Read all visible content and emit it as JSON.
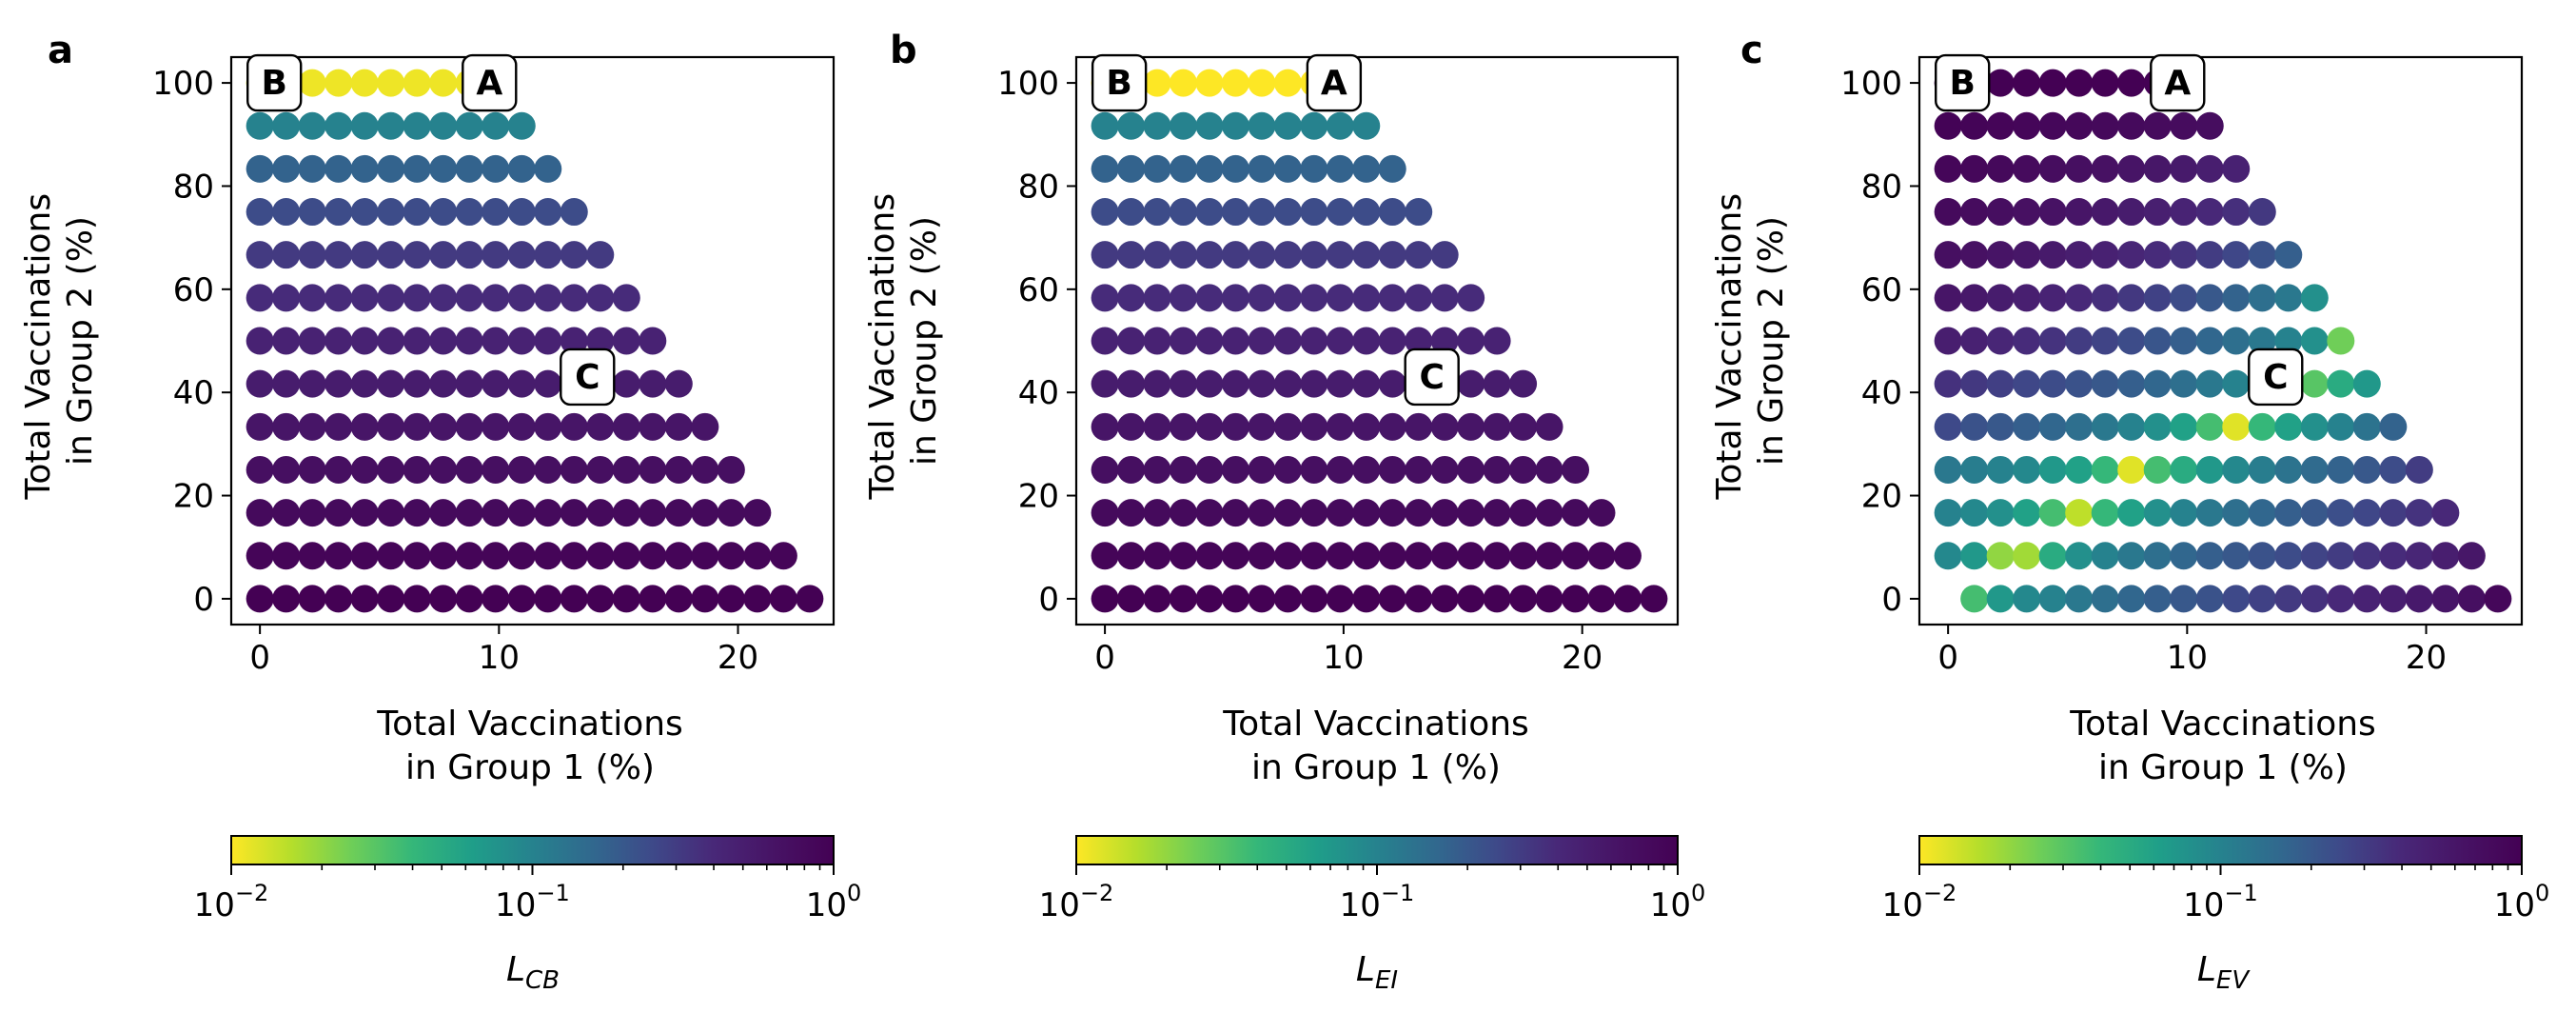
{
  "figure": {
    "colormap": "viridis (reversed)",
    "colorbar_ticks": [
      {
        "base": "10",
        "exp": "−2",
        "value": 0.01
      },
      {
        "base": "10",
        "exp": "−1",
        "value": 0.1
      },
      {
        "base": "10",
        "exp": "0",
        "value": 1
      }
    ],
    "colorbar_scale": "log",
    "colorbar_range": [
      0.01,
      1
    ]
  },
  "chart_data": [
    {
      "panel": "a",
      "type": "scatter",
      "xlabel_line1": "Total Vaccinations",
      "xlabel_line2": "in Group 1 (%)",
      "ylabel_line1": "Total Vaccinations",
      "ylabel_line2": "in Group 2 (%)",
      "xlim": [
        -1.2,
        24
      ],
      "ylim": [
        -5,
        105
      ],
      "xticks": [
        "0",
        "10",
        "20"
      ],
      "yticks": [
        "0",
        "20",
        "40",
        "60",
        "80",
        "100"
      ],
      "grid": false,
      "colorbar_label": "L",
      "colorbar_label_sub": "CB",
      "markers": [
        {
          "label": "A",
          "x": 9.6,
          "y": 100
        },
        {
          "label": "B",
          "x": 0.6,
          "y": 100
        },
        {
          "label": "C",
          "x": 13.7,
          "y": 43
        }
      ],
      "rows": [
        {
          "y": 0,
          "values": [
            1.0,
            1.0,
            1.0,
            1.0,
            1.0,
            1.0,
            1.0,
            1.0,
            1.0,
            1.0,
            1.0,
            1.0,
            1.0,
            1.0,
            1.0,
            1.0,
            1.0,
            1.0,
            1.0,
            1.0,
            1.0,
            1.0
          ]
        },
        {
          "y": 8.33,
          "values": [
            0.9,
            0.9,
            0.9,
            0.9,
            0.9,
            0.9,
            0.9,
            0.9,
            0.9,
            0.9,
            0.9,
            0.9,
            0.9,
            0.9,
            0.9,
            0.9,
            0.9,
            0.9,
            0.9,
            0.9,
            0.9
          ]
        },
        {
          "y": 16.67,
          "values": [
            0.8,
            0.8,
            0.8,
            0.8,
            0.8,
            0.8,
            0.8,
            0.8,
            0.8,
            0.8,
            0.8,
            0.8,
            0.8,
            0.8,
            0.8,
            0.8,
            0.8,
            0.8,
            0.8,
            0.8
          ]
        },
        {
          "y": 25,
          "values": [
            0.7,
            0.7,
            0.7,
            0.7,
            0.7,
            0.7,
            0.7,
            0.7,
            0.7,
            0.7,
            0.7,
            0.7,
            0.7,
            0.7,
            0.7,
            0.7,
            0.7,
            0.7,
            0.7
          ]
        },
        {
          "y": 33.33,
          "values": [
            0.6,
            0.6,
            0.6,
            0.6,
            0.6,
            0.6,
            0.6,
            0.6,
            0.6,
            0.6,
            0.6,
            0.6,
            0.6,
            0.6,
            0.6,
            0.6,
            0.6,
            0.6
          ]
        },
        {
          "y": 41.67,
          "values": [
            0.52,
            0.52,
            0.52,
            0.52,
            0.52,
            0.52,
            0.52,
            0.52,
            0.52,
            0.52,
            0.52,
            0.52,
            0.52,
            0.52,
            0.52,
            0.52,
            0.52
          ]
        },
        {
          "y": 50,
          "values": [
            0.45,
            0.45,
            0.45,
            0.45,
            0.45,
            0.45,
            0.45,
            0.45,
            0.45,
            0.45,
            0.45,
            0.45,
            0.45,
            0.45,
            0.45,
            0.45
          ]
        },
        {
          "y": 58.33,
          "values": [
            0.38,
            0.38,
            0.38,
            0.38,
            0.38,
            0.38,
            0.38,
            0.38,
            0.38,
            0.38,
            0.38,
            0.38,
            0.38,
            0.38,
            0.38
          ]
        },
        {
          "y": 66.67,
          "values": [
            0.31,
            0.31,
            0.31,
            0.31,
            0.31,
            0.31,
            0.31,
            0.31,
            0.31,
            0.31,
            0.31,
            0.31,
            0.31,
            0.31
          ]
        },
        {
          "y": 75,
          "values": [
            0.24,
            0.24,
            0.24,
            0.24,
            0.24,
            0.24,
            0.24,
            0.24,
            0.24,
            0.24,
            0.24,
            0.24,
            0.24
          ]
        },
        {
          "y": 83.33,
          "values": [
            0.17,
            0.17,
            0.17,
            0.17,
            0.17,
            0.17,
            0.17,
            0.17,
            0.17,
            0.17,
            0.17,
            0.17
          ]
        },
        {
          "y": 91.67,
          "values": [
            0.1,
            0.1,
            0.1,
            0.1,
            0.1,
            0.1,
            0.1,
            0.1,
            0.1,
            0.1,
            0.1
          ]
        },
        {
          "y": 100,
          "values": [
            0.012,
            0.015,
            0.011,
            0.011,
            0.011,
            0.011,
            0.011,
            0.011,
            0.011,
            0.011
          ]
        }
      ]
    },
    {
      "panel": "b",
      "type": "scatter",
      "xlabel_line1": "Total Vaccinations",
      "xlabel_line2": "in Group 1 (%)",
      "ylabel_line1": "Total Vaccinations",
      "ylabel_line2": "in Group 2 (%)",
      "xlim": [
        -1.2,
        24
      ],
      "ylim": [
        -5,
        105
      ],
      "xticks": [
        "0",
        "10",
        "20"
      ],
      "yticks": [
        "0",
        "20",
        "40",
        "60",
        "80",
        "100"
      ],
      "grid": false,
      "colorbar_label": "L",
      "colorbar_label_sub": "EI",
      "markers": [
        {
          "label": "A",
          "x": 9.6,
          "y": 100
        },
        {
          "label": "B",
          "x": 0.6,
          "y": 100
        },
        {
          "label": "C",
          "x": 13.7,
          "y": 43
        }
      ],
      "rows": [
        {
          "y": 0,
          "values": [
            1.0,
            1.0,
            1.0,
            1.0,
            1.0,
            1.0,
            1.0,
            1.0,
            1.0,
            1.0,
            1.0,
            1.0,
            1.0,
            1.0,
            1.0,
            1.0,
            1.0,
            1.0,
            1.0,
            1.0,
            1.0,
            1.0
          ]
        },
        {
          "y": 8.33,
          "values": [
            0.9,
            0.9,
            0.9,
            0.9,
            0.9,
            0.9,
            0.9,
            0.9,
            0.9,
            0.9,
            0.9,
            0.9,
            0.9,
            0.9,
            0.9,
            0.9,
            0.9,
            0.9,
            0.9,
            0.9,
            0.9
          ]
        },
        {
          "y": 16.67,
          "values": [
            0.8,
            0.8,
            0.8,
            0.8,
            0.8,
            0.8,
            0.8,
            0.8,
            0.8,
            0.8,
            0.8,
            0.8,
            0.8,
            0.8,
            0.8,
            0.8,
            0.8,
            0.8,
            0.8,
            0.8
          ]
        },
        {
          "y": 25,
          "values": [
            0.7,
            0.7,
            0.7,
            0.7,
            0.7,
            0.7,
            0.7,
            0.7,
            0.7,
            0.7,
            0.7,
            0.7,
            0.7,
            0.7,
            0.7,
            0.7,
            0.7,
            0.7,
            0.7
          ]
        },
        {
          "y": 33.33,
          "values": [
            0.6,
            0.6,
            0.6,
            0.6,
            0.6,
            0.6,
            0.6,
            0.6,
            0.6,
            0.6,
            0.6,
            0.6,
            0.6,
            0.6,
            0.6,
            0.6,
            0.6,
            0.6
          ]
        },
        {
          "y": 41.67,
          "values": [
            0.52,
            0.52,
            0.52,
            0.52,
            0.52,
            0.52,
            0.52,
            0.52,
            0.52,
            0.52,
            0.52,
            0.52,
            0.52,
            0.52,
            0.52,
            0.52,
            0.52
          ]
        },
        {
          "y": 50,
          "values": [
            0.45,
            0.45,
            0.45,
            0.45,
            0.45,
            0.45,
            0.45,
            0.45,
            0.45,
            0.45,
            0.45,
            0.45,
            0.45,
            0.45,
            0.45,
            0.45
          ]
        },
        {
          "y": 58.33,
          "values": [
            0.38,
            0.38,
            0.38,
            0.38,
            0.38,
            0.38,
            0.38,
            0.38,
            0.38,
            0.38,
            0.38,
            0.38,
            0.38,
            0.38,
            0.38
          ]
        },
        {
          "y": 66.67,
          "values": [
            0.31,
            0.31,
            0.31,
            0.31,
            0.31,
            0.31,
            0.31,
            0.31,
            0.31,
            0.31,
            0.31,
            0.31,
            0.31,
            0.31
          ]
        },
        {
          "y": 75,
          "values": [
            0.24,
            0.24,
            0.24,
            0.24,
            0.24,
            0.24,
            0.24,
            0.24,
            0.24,
            0.24,
            0.24,
            0.24,
            0.24
          ]
        },
        {
          "y": 83.33,
          "values": [
            0.17,
            0.17,
            0.17,
            0.17,
            0.17,
            0.17,
            0.17,
            0.17,
            0.17,
            0.17,
            0.17,
            0.17
          ]
        },
        {
          "y": 91.67,
          "values": [
            0.1,
            0.1,
            0.1,
            0.1,
            0.1,
            0.1,
            0.1,
            0.1,
            0.1,
            0.1,
            0.1
          ]
        },
        {
          "y": 100,
          "values": [
            0.01,
            0.01,
            0.01,
            0.01,
            0.01,
            0.01,
            0.01,
            0.01,
            0.01,
            0.01
          ]
        }
      ]
    },
    {
      "panel": "c",
      "type": "scatter",
      "xlabel_line1": "Total Vaccinations",
      "xlabel_line2": "in Group 1 (%)",
      "ylabel_line1": "Total Vaccinations",
      "ylabel_line2": "in Group 2 (%)",
      "xlim": [
        -1.2,
        24
      ],
      "ylim": [
        -5,
        105
      ],
      "xticks": [
        "0",
        "10",
        "20"
      ],
      "yticks": [
        "0",
        "20",
        "40",
        "60",
        "80",
        "100"
      ],
      "grid": false,
      "colorbar_label": "L",
      "colorbar_label_sub": "EV",
      "markers": [
        {
          "label": "A",
          "x": 9.6,
          "y": 100
        },
        {
          "label": "B",
          "x": 0.6,
          "y": 100
        },
        {
          "label": "C",
          "x": 13.7,
          "y": 43
        }
      ],
      "rows": [
        {
          "y": 0,
          "values": [
            null,
            0.035,
            0.07,
            0.09,
            0.1,
            0.12,
            0.14,
            0.16,
            0.18,
            0.2,
            0.22,
            0.25,
            0.28,
            0.31,
            0.35,
            0.4,
            0.45,
            0.5,
            0.55,
            0.6,
            0.7,
            0.85
          ]
        },
        {
          "y": 8.33,
          "values": [
            0.09,
            0.07,
            0.02,
            0.018,
            0.05,
            0.08,
            0.1,
            0.12,
            0.14,
            0.16,
            0.18,
            0.2,
            0.22,
            0.24,
            0.27,
            0.3,
            0.34,
            0.38,
            0.42,
            0.5,
            0.58
          ]
        },
        {
          "y": 16.67,
          "values": [
            0.1,
            0.09,
            0.08,
            0.06,
            0.035,
            0.015,
            0.04,
            0.06,
            0.08,
            0.1,
            0.12,
            0.14,
            0.16,
            0.18,
            0.2,
            0.23,
            0.26,
            0.3,
            0.34,
            0.4
          ]
        },
        {
          "y": 25,
          "values": [
            0.12,
            0.11,
            0.1,
            0.09,
            0.07,
            0.06,
            0.04,
            0.012,
            0.035,
            0.05,
            0.07,
            0.09,
            0.11,
            0.13,
            0.15,
            0.17,
            0.2,
            0.24,
            0.3
          ]
        },
        {
          "y": 33.33,
          "values": [
            0.25,
            0.22,
            0.2,
            0.18,
            0.16,
            0.14,
            0.12,
            0.1,
            0.08,
            0.06,
            0.035,
            0.012,
            0.04,
            0.06,
            0.08,
            0.1,
            0.13,
            0.17
          ]
        },
        {
          "y": 41.67,
          "values": [
            0.35,
            0.32,
            0.29,
            0.26,
            0.24,
            0.22,
            0.2,
            0.18,
            0.16,
            0.14,
            0.12,
            0.1,
            0.09,
            0.08,
            0.03,
            0.05,
            0.07
          ]
        },
        {
          "y": 50,
          "values": [
            0.5,
            0.46,
            0.42,
            0.38,
            0.34,
            0.3,
            0.27,
            0.24,
            0.21,
            0.18,
            0.16,
            0.14,
            0.12,
            0.1,
            0.08,
            0.025
          ]
        },
        {
          "y": 58.33,
          "values": [
            0.6,
            0.56,
            0.52,
            0.48,
            0.44,
            0.4,
            0.36,
            0.32,
            0.28,
            0.24,
            0.2,
            0.17,
            0.14,
            0.12,
            0.08
          ]
        },
        {
          "y": 66.67,
          "values": [
            0.7,
            0.66,
            0.62,
            0.58,
            0.54,
            0.5,
            0.46,
            0.42,
            0.38,
            0.34,
            0.3,
            0.26,
            0.22,
            0.18
          ]
        },
        {
          "y": 75,
          "values": [
            0.8,
            0.76,
            0.72,
            0.68,
            0.64,
            0.6,
            0.56,
            0.52,
            0.48,
            0.44,
            0.4,
            0.36,
            0.32
          ]
        },
        {
          "y": 83.33,
          "values": [
            0.88,
            0.85,
            0.82,
            0.78,
            0.74,
            0.7,
            0.66,
            0.62,
            0.58,
            0.54,
            0.5,
            0.46
          ]
        },
        {
          "y": 91.67,
          "values": [
            0.95,
            0.93,
            0.9,
            0.88,
            0.86,
            0.84,
            0.82,
            0.8,
            0.78,
            0.76,
            0.74
          ]
        },
        {
          "y": 100,
          "values": [
            1.0,
            1.0,
            1.0,
            1.0,
            1.0,
            1.0,
            1.0,
            1.0,
            1.0,
            1.0
          ]
        }
      ]
    }
  ]
}
